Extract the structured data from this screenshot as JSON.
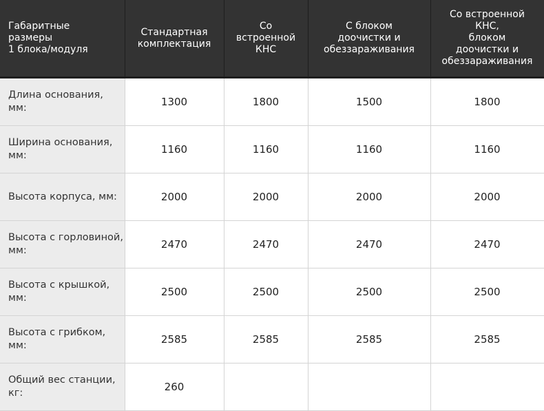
{
  "headers": [
    "Габаритные\nразмеры\n1 блока/модуля",
    "Стандартная\nкомплектация",
    "Со\nвстроенной\nКНС",
    "С блоком\nдоочистки и\nобеззараживания",
    "Со встроенной\nКНС,\nблоком\nдоочистки и\nобеззараживания"
  ],
  "rows": [
    {
      "label": "Длина основания, мм:",
      "values": [
        "1300",
        "1800",
        "1500",
        "1800"
      ]
    },
    {
      "label": "Ширина основания, мм:",
      "values": [
        "1160",
        "1160",
        "1160",
        "1160"
      ]
    },
    {
      "label": "Высота корпуса, мм:",
      "values": [
        "2000",
        "2000",
        "2000",
        "2000"
      ]
    },
    {
      "label": "Высота с горловиной, мм:",
      "values": [
        "2470",
        "2470",
        "2470",
        "2470"
      ]
    },
    {
      "label": "Высота с крышкой, мм:",
      "values": [
        "2500",
        "2500",
        "2500",
        "2500"
      ]
    },
    {
      "label": "Высота с грибком, мм:",
      "values": [
        "2585",
        "2585",
        "2585",
        "2585"
      ]
    },
    {
      "label": "Общий вес станции, кг:",
      "values": [
        "260",
        "",
        "",
        ""
      ]
    }
  ]
}
